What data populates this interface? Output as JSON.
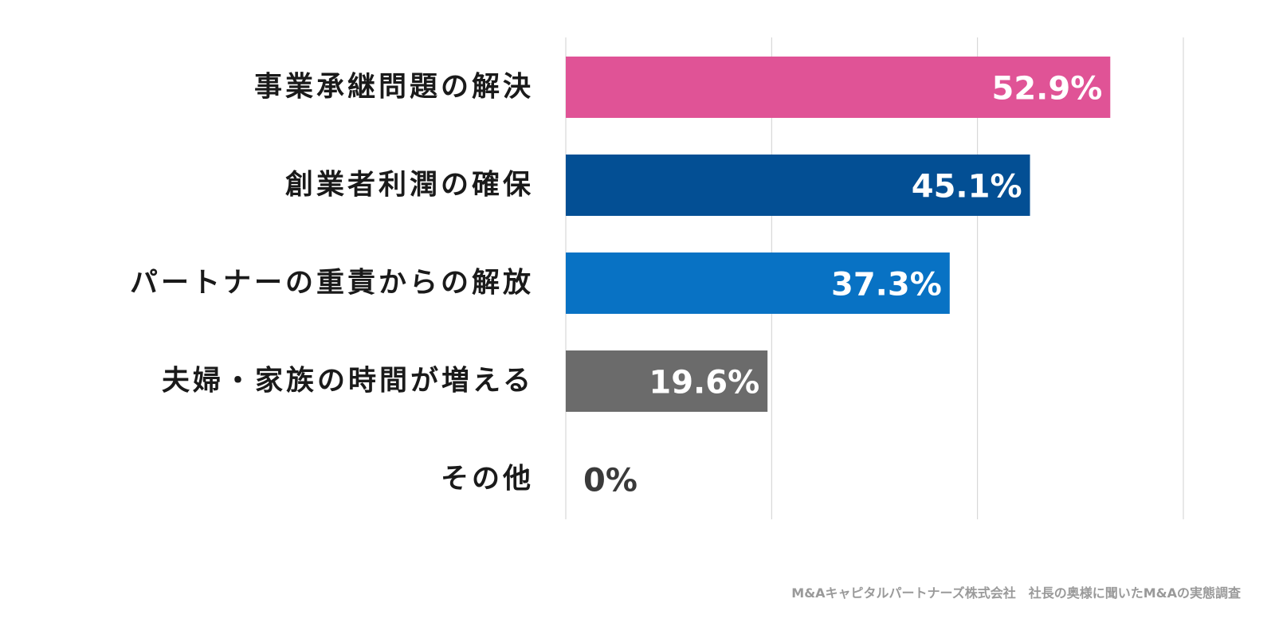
{
  "chart_data": {
    "type": "bar",
    "orientation": "horizontal",
    "categories": [
      "事業承継問題の解決",
      "創業者利潤の確保",
      "パートナーの重責からの解放",
      "夫婦・家族の時間が増える",
      "その他"
    ],
    "values": [
      52.9,
      45.1,
      37.3,
      19.6,
      0
    ],
    "value_labels": [
      "52.9%",
      "45.1%",
      "37.3%",
      "19.6%",
      "0%"
    ],
    "colors": [
      "#e05396",
      "#034f94",
      "#0872c4",
      "#6b6b6b",
      "#6b6b6b"
    ],
    "xlim": [
      0,
      60
    ],
    "grid": true,
    "legend": "none"
  },
  "source": "M&Aキャピタルパートナーズ株式会社　社長の奥様に聞いたM&Aの実態調査"
}
